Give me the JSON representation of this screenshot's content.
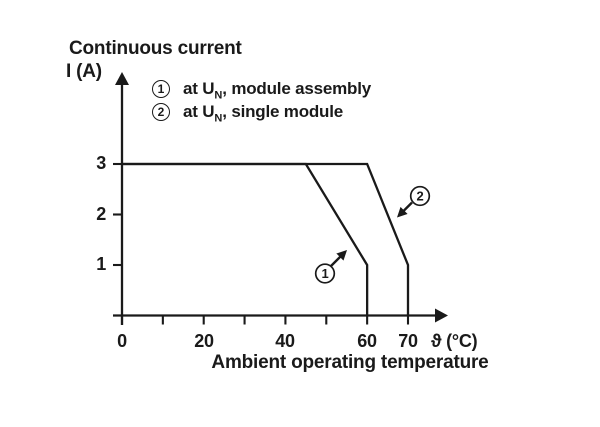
{
  "chart": {
    "title": "Continuous current",
    "y_axis": {
      "label": "I (A)",
      "ticks": [
        "3",
        "2",
        "1"
      ]
    },
    "x_axis": {
      "ticks": [
        "0",
        "20",
        "40",
        "60",
        "70"
      ],
      "unit": "ϑ (°C)",
      "caption": "Ambient operating temperature"
    }
  },
  "legend": {
    "items": [
      {
        "marker": "1",
        "prefix": "at U",
        "sub": "N",
        "rest": ", module assembly"
      },
      {
        "marker": "2",
        "prefix": "at U",
        "sub": "N",
        "rest": ", single module"
      }
    ]
  },
  "annotations": [
    {
      "label": "1",
      "target": "module assembly curve"
    },
    {
      "label": "2",
      "target": "single module curve"
    }
  ],
  "colors": {
    "ink": "#1a1a1a",
    "bg": "#ffffff"
  },
  "chart_data": {
    "type": "line",
    "title": "Continuous current",
    "ylabel": "I (A)",
    "xlabel": "ϑ (°C)",
    "x_caption": "Ambient operating temperature",
    "xlim": [
      0,
      80
    ],
    "ylim": [
      0,
      4
    ],
    "grid": false,
    "legend_position": "top-inside",
    "x_ticks_labeled": [
      0,
      20,
      40,
      60,
      70
    ],
    "x_ticks_all": [
      0,
      10,
      20,
      30,
      40,
      50,
      60,
      70
    ],
    "y_ticks": [
      1,
      2,
      3
    ],
    "series": [
      {
        "id": "1",
        "name": "at UN, module assembly",
        "points": [
          [
            0,
            3
          ],
          [
            45,
            3
          ],
          [
            60,
            1
          ],
          [
            60,
            0
          ]
        ]
      },
      {
        "id": "2",
        "name": "at UN, single module",
        "points": [
          [
            0,
            3
          ],
          [
            60,
            3
          ],
          [
            70,
            1
          ],
          [
            70,
            0
          ]
        ]
      }
    ]
  }
}
